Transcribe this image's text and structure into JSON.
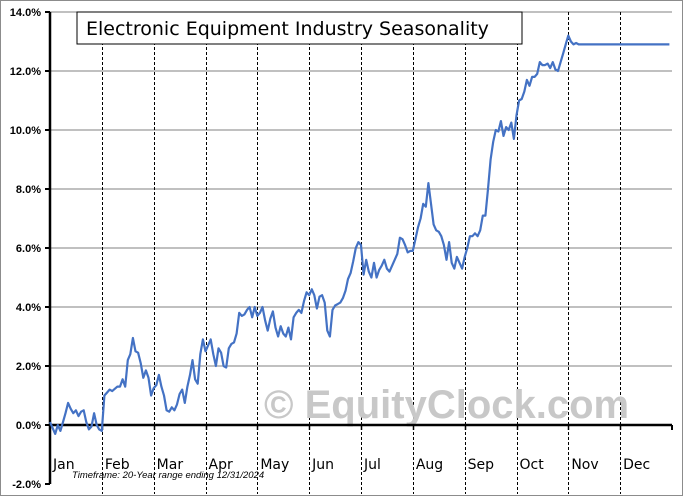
{
  "chart_data": {
    "type": "line",
    "title": "Electronic Equipment Industry Seasonality",
    "xlabel": "",
    "ylabel": "",
    "ylim": [
      -2.0,
      14.0
    ],
    "yticks": [
      "-2.0%",
      "0.0%",
      "2.0%",
      "4.0%",
      "6.0%",
      "8.0%",
      "10.0%",
      "12.0%",
      "14.0%"
    ],
    "ytick_values": [
      -2,
      0,
      2,
      4,
      6,
      8,
      10,
      12,
      14
    ],
    "categories": [
      "Jan",
      "Feb",
      "Mar",
      "Apr",
      "May",
      "Jun",
      "Jul",
      "Aug",
      "Sep",
      "Oct",
      "Nov",
      "Dec"
    ],
    "grid": {
      "horizontal": true,
      "vertical_month_dividers": "dashed"
    },
    "legend": null,
    "annotations": [
      "Timeframe: 20-Year range ending 12/31/2024",
      "© EquityClock.com"
    ],
    "series": [
      {
        "name": "Electronic Equipment Industry",
        "color": "#4472c4",
        "x_month_fraction": [
          0.0,
          0.05,
          0.1,
          0.15,
          0.2,
          0.25,
          0.3,
          0.35,
          0.4,
          0.45,
          0.5,
          0.55,
          0.6,
          0.65,
          0.7,
          0.75,
          0.8,
          0.85,
          0.9,
          0.95,
          1.0,
          1.05,
          1.1,
          1.15,
          1.2,
          1.3,
          1.35,
          1.4,
          1.45,
          1.5,
          1.55,
          1.6,
          1.65,
          1.7,
          1.75,
          1.8,
          1.85,
          1.9,
          1.95,
          2.0,
          2.05,
          2.1,
          2.15,
          2.2,
          2.25,
          2.3,
          2.35,
          2.4,
          2.45,
          2.5,
          2.55,
          2.6,
          2.65,
          2.7,
          2.75,
          2.8,
          2.85,
          2.9,
          2.95,
          3.0,
          3.05,
          3.1,
          3.15,
          3.2,
          3.25,
          3.3,
          3.35,
          3.4,
          3.45,
          3.5,
          3.55,
          3.6,
          3.65,
          3.7,
          3.75,
          3.8,
          3.85,
          3.9,
          3.95,
          4.0,
          4.05,
          4.1,
          4.15,
          4.2,
          4.25,
          4.3,
          4.35,
          4.4,
          4.45,
          4.5,
          4.55,
          4.6,
          4.65,
          4.7,
          4.75,
          4.8,
          4.85,
          4.9,
          4.95,
          5.0,
          5.05,
          5.1,
          5.15,
          5.2,
          5.25,
          5.3,
          5.35,
          5.4,
          5.45,
          5.5,
          5.55,
          5.6,
          5.65,
          5.7,
          5.75,
          5.8,
          5.85,
          5.9,
          5.95,
          6.0,
          6.05,
          6.1,
          6.15,
          6.2,
          6.25,
          6.3,
          6.35,
          6.4,
          6.45,
          6.5,
          6.55,
          6.6,
          6.65,
          6.7,
          6.75,
          6.8,
          6.85,
          6.9,
          6.95,
          7.0,
          7.05,
          7.1,
          7.15,
          7.2,
          7.25,
          7.3,
          7.35,
          7.4,
          7.45,
          7.5,
          7.55,
          7.6,
          7.65,
          7.7,
          7.75,
          7.8,
          7.85,
          7.9,
          7.95,
          8.0,
          8.05,
          8.1,
          8.15,
          8.2,
          8.25,
          8.3,
          8.35,
          8.4,
          8.45,
          8.5,
          8.55,
          8.6,
          8.65,
          8.7,
          8.75,
          8.8,
          8.85,
          8.9,
          8.95,
          9.0,
          9.05,
          9.1,
          9.15,
          9.2,
          9.25,
          9.3,
          9.35,
          9.4,
          9.45,
          9.5,
          9.55,
          9.6,
          9.65,
          9.7,
          9.75,
          9.8,
          9.85,
          9.9,
          9.95,
          10.0,
          10.05,
          10.1,
          10.15,
          10.2,
          10.25,
          10.3,
          10.35,
          10.4,
          10.45,
          10.5,
          10.55,
          10.6,
          10.65,
          10.7,
          10.75,
          10.8,
          10.85,
          10.9,
          10.95,
          11.0,
          11.05,
          11.1,
          11.15,
          11.2,
          11.25,
          11.3,
          11.35,
          11.4,
          11.45,
          11.5,
          11.55,
          11.6,
          11.65,
          11.7,
          11.75,
          11.8,
          11.85,
          11.9,
          11.95,
          12.0
        ],
        "values": [
          0.1,
          -0.1,
          -0.3,
          0.0,
          -0.2,
          0.1,
          0.4,
          0.75,
          0.55,
          0.4,
          0.5,
          0.3,
          0.45,
          0.5,
          0.1,
          -0.15,
          -0.05,
          0.4,
          0.0,
          -0.15,
          -0.2,
          1.0,
          1.1,
          1.2,
          1.15,
          1.3,
          1.3,
          1.55,
          1.3,
          2.2,
          2.4,
          2.95,
          2.5,
          2.45,
          2.1,
          1.6,
          1.85,
          1.6,
          1.0,
          1.25,
          1.35,
          1.7,
          1.3,
          1.0,
          0.5,
          0.45,
          0.6,
          0.5,
          0.7,
          1.05,
          1.2,
          0.75,
          1.3,
          1.7,
          2.2,
          1.55,
          1.4,
          2.4,
          2.9,
          2.5,
          2.7,
          2.9,
          2.4,
          2.0,
          2.6,
          2.45,
          2.0,
          1.95,
          2.6,
          2.75,
          2.8,
          3.1,
          3.8,
          3.7,
          3.75,
          3.9,
          4.0,
          3.65,
          4.0,
          3.7,
          3.8,
          4.0,
          3.55,
          3.2,
          3.6,
          3.85,
          3.3,
          3.0,
          3.35,
          3.1,
          3.0,
          3.3,
          2.9,
          3.65,
          3.8,
          3.9,
          3.8,
          4.2,
          4.5,
          4.4,
          4.6,
          4.4,
          3.95,
          4.35,
          4.4,
          4.15,
          3.2,
          3.0,
          3.9,
          4.05,
          4.1,
          4.15,
          4.3,
          4.55,
          4.95,
          5.15,
          5.55,
          6.0,
          6.2,
          6.1,
          5.1,
          5.6,
          5.2,
          5.0,
          5.5,
          5.0,
          5.25,
          5.4,
          5.6,
          5.3,
          5.2,
          5.4,
          5.6,
          5.8,
          6.35,
          6.3,
          6.1,
          5.85,
          5.9,
          5.9,
          6.3,
          6.7,
          7.0,
          7.5,
          7.4,
          8.2,
          7.5,
          6.8,
          6.6,
          6.55,
          6.4,
          6.1,
          5.6,
          6.2,
          5.5,
          5.3,
          5.7,
          5.5,
          5.3,
          5.7,
          6.0,
          6.4,
          6.4,
          6.5,
          6.4,
          6.6,
          7.1,
          7.1,
          8.0,
          9.0,
          9.6,
          10.0,
          9.95,
          10.3,
          9.8,
          10.1,
          10.0,
          10.25,
          9.7,
          10.5,
          11.0,
          11.05,
          11.3,
          11.7,
          11.5,
          11.8,
          11.8,
          11.9,
          12.3,
          12.2,
          12.2,
          12.25,
          12.1,
          12.3,
          12.05,
          12.0,
          12.3,
          12.6,
          12.9,
          13.2,
          13.0,
          12.9,
          12.95,
          12.9,
          12.9,
          12.9,
          12.9,
          12.9,
          12.9,
          12.9,
          12.9,
          12.9,
          12.9,
          12.9,
          12.9,
          12.9,
          12.9,
          12.9,
          12.9,
          12.9,
          12.9,
          12.9,
          12.9,
          12.9,
          12.9,
          12.9,
          12.9,
          12.9,
          12.9,
          12.9,
          12.9,
          12.9,
          12.9,
          12.9,
          12.9,
          12.9,
          12.9,
          12.9,
          12.9,
          12.9
        ]
      }
    ]
  },
  "labels": {
    "title": "Electronic Equipment Industry Seasonality",
    "watermark": "© EquityClock.com",
    "timeframe": "Timeframe: 20-Year range ending 12/31/2024",
    "months": [
      "Jan",
      "Feb",
      "Mar",
      "Apr",
      "May",
      "Jun",
      "Jul",
      "Aug",
      "Sep",
      "Oct",
      "Nov",
      "Dec"
    ],
    "yticks": [
      "14.0%",
      "12.0%",
      "10.0%",
      "8.0%",
      "6.0%",
      "4.0%",
      "2.0%",
      "0.0%",
      "-2.0%"
    ]
  }
}
